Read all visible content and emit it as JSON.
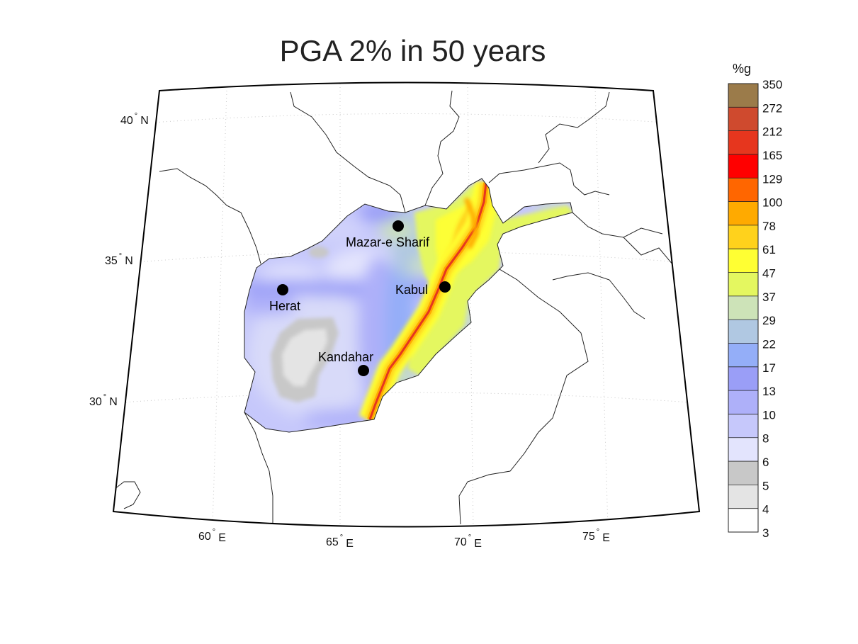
{
  "title": "PGA 2% in 50 years",
  "colorbar": {
    "unit": "%g",
    "ticks": [
      "350",
      "272",
      "212",
      "165",
      "129",
      "100",
      "78",
      "61",
      "47",
      "37",
      "29",
      "22",
      "17",
      "13",
      "10",
      "8",
      "6",
      "5",
      "4",
      "3"
    ],
    "colors": [
      "#9b7b4a",
      "#cf4a2e",
      "#e6361e",
      "#ff0000",
      "#ff6600",
      "#ffaa00",
      "#ffd21c",
      "#ffff33",
      "#e4f760",
      "#cde3b8",
      "#b0c8e2",
      "#94aef8",
      "#9a9ef7",
      "#aeb0f9",
      "#c6c8fb",
      "#e3e4fd",
      "#c8c8c8",
      "#e4e4e4",
      "#ffffff"
    ]
  },
  "lat_labels": [
    {
      "deg": "40",
      "hemi": "N"
    },
    {
      "deg": "35",
      "hemi": "N"
    },
    {
      "deg": "30",
      "hemi": "N"
    }
  ],
  "lon_labels": [
    {
      "deg": "60",
      "hemi": "E"
    },
    {
      "deg": "65",
      "hemi": "E"
    },
    {
      "deg": "70",
      "hemi": "E"
    },
    {
      "deg": "75",
      "hemi": "E"
    }
  ],
  "degree_symbol": "°",
  "cities": [
    {
      "name": "Mazar-e Sharif"
    },
    {
      "name": "Kabul"
    },
    {
      "name": "Herat"
    },
    {
      "name": "Kandahar"
    }
  ]
}
